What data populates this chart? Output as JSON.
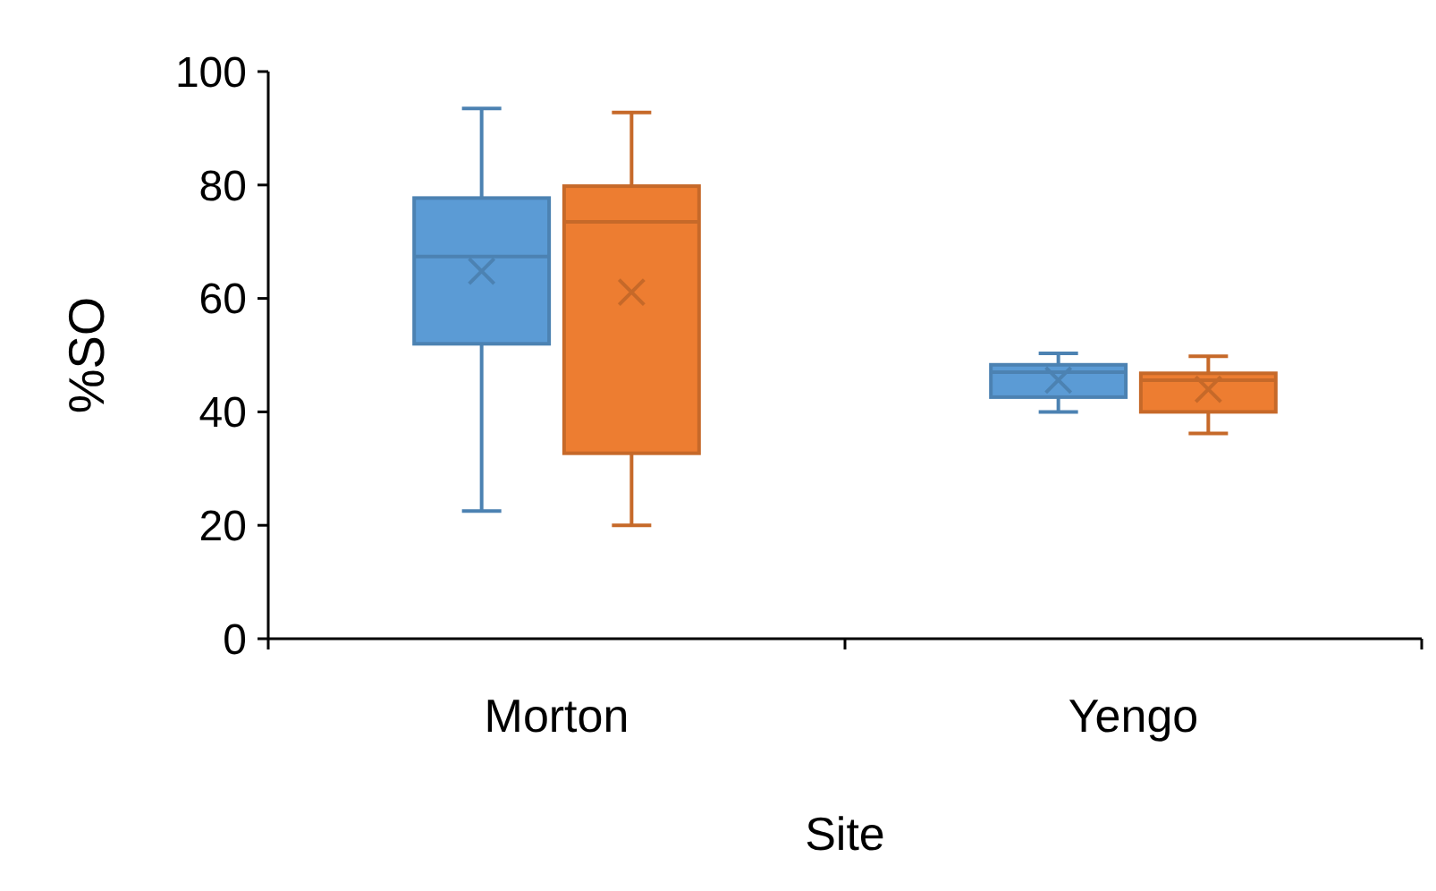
{
  "chart_data": {
    "type": "box",
    "xlabel": "Site",
    "ylabel": "%SO",
    "categories": [
      "Morton",
      "Yengo"
    ],
    "ylim": [
      0,
      100
    ],
    "yticks": [
      0,
      20,
      40,
      60,
      80,
      100
    ],
    "grid": false,
    "series": [
      {
        "color": "#5b9bd5",
        "boxes": [
          {
            "low": 22.5,
            "q1": 52,
            "median": 67.4,
            "q3": 77.7,
            "high": 93.5,
            "mean": 64.8
          },
          {
            "low": 40,
            "q1": 42.6,
            "median": 47,
            "q3": 48.3,
            "high": 50.3,
            "mean": 45.6
          }
        ]
      },
      {
        "color": "#ed7d31",
        "boxes": [
          {
            "low": 20,
            "q1": 32.7,
            "median": 73.5,
            "q3": 79.8,
            "high": 92.8,
            "mean": 61.1
          },
          {
            "low": 36.2,
            "q1": 40,
            "median": 45.6,
            "q3": 46.8,
            "high": 49.8,
            "mean": 44
          }
        ]
      }
    ]
  }
}
